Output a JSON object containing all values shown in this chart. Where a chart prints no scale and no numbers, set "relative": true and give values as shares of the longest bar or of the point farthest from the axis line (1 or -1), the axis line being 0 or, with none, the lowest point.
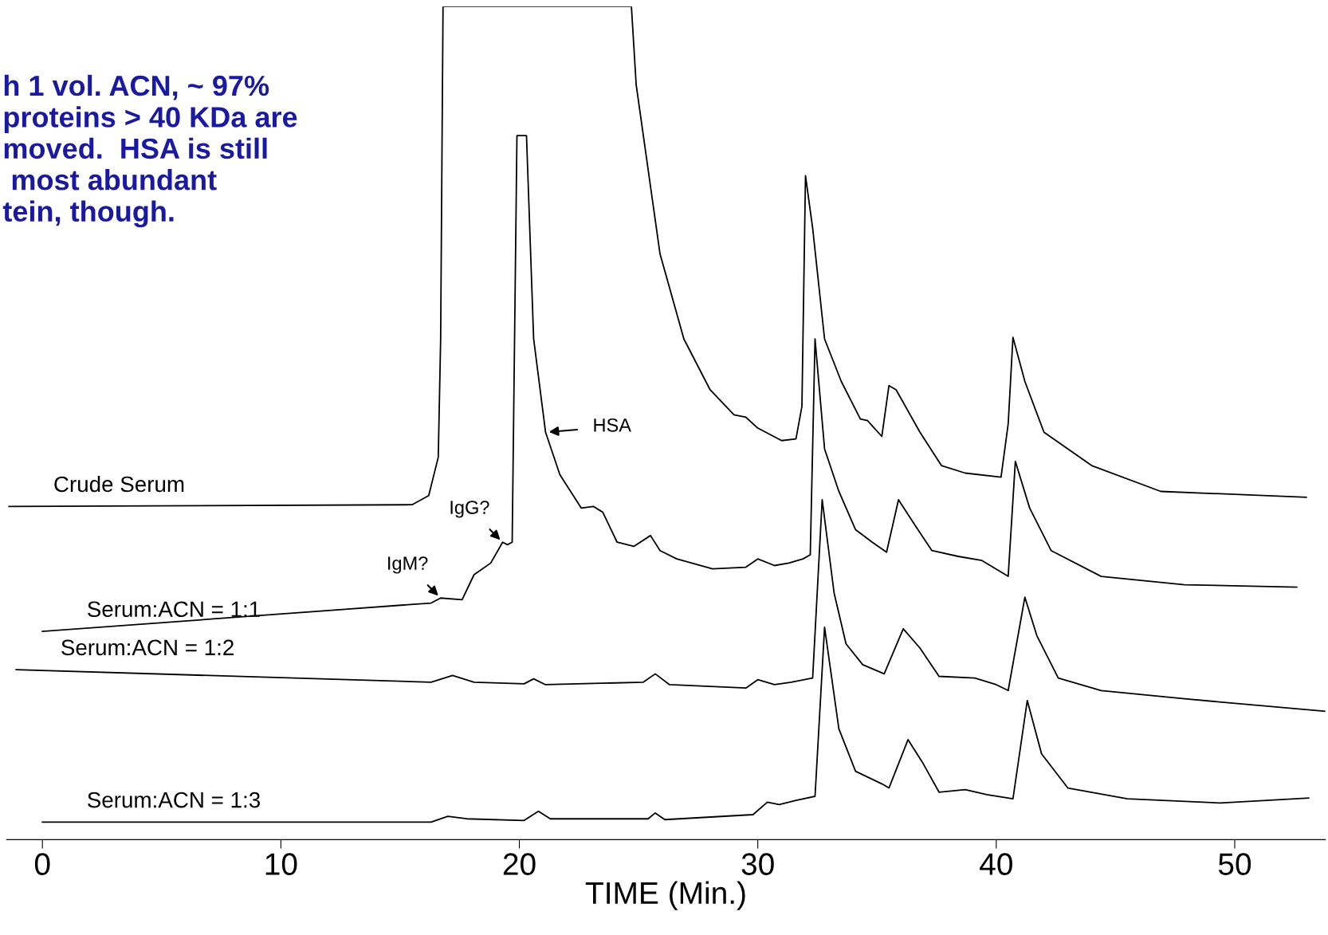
{
  "chart_data": {
    "type": "line",
    "relative": true,
    "xlabel": "TIME (Min.)",
    "xlim": [
      -1.5,
      53.8
    ],
    "xticks": [
      0,
      10,
      20,
      30,
      40,
      50
    ],
    "grid": false,
    "legend": false,
    "marker": "none",
    "line_style": "solid",
    "annotations": [
      "h 1 vol. ACN, ~ 97%\nproteins > 40 KDa are\nmoved.  HSA is still\n most abundant\ntein, though.",
      {
        "text": "HSA",
        "x": 21.1,
        "y": 0.489
      },
      {
        "text": "IgG?",
        "x": 19.3,
        "y": 0.357
      },
      {
        "text": "IgM?",
        "x": 16.7,
        "y": 0.29
      }
    ],
    "series": [
      {
        "name": "Crude Serum",
        "color": "#000000",
        "x": [
          -1.4,
          15.5,
          16.2,
          16.6,
          16.7,
          16.8,
          24.7,
          24.9,
          25.9,
          26.9,
          28.0,
          29.0,
          29.5,
          30.0,
          31.0,
          31.6,
          31.85,
          32.0,
          32.3,
          32.8,
          33.5,
          34.3,
          34.6,
          35.2,
          35.5,
          35.8,
          36.8,
          37.7,
          38.7,
          40.2,
          40.5,
          40.7,
          41.2,
          42.0,
          44.0,
          46.9,
          53.0
        ],
        "values": [
          0.4,
          0.402,
          0.413,
          0.459,
          0.6,
          1.0,
          1.0,
          0.906,
          0.703,
          0.601,
          0.54,
          0.51,
          0.507,
          0.494,
          0.479,
          0.481,
          0.52,
          0.797,
          0.734,
          0.601,
          0.55,
          0.505,
          0.503,
          0.484,
          0.545,
          0.54,
          0.489,
          0.449,
          0.44,
          0.435,
          0.499,
          0.603,
          0.55,
          0.489,
          0.449,
          0.418,
          0.411
        ]
      },
      {
        "name": "Serum:ACN = 1:1",
        "color": "#000000",
        "x": [
          0,
          16.3,
          16.7,
          17.6,
          18.1,
          18.8,
          19.3,
          19.5,
          19.7,
          19.9,
          20.3,
          20.6,
          21.1,
          21.7,
          22.6,
          23.1,
          23.5,
          24.1,
          24.8,
          25.5,
          25.9,
          26.6,
          28.1,
          29.5,
          30.0,
          30.7,
          31.3,
          31.9,
          32.2,
          32.4,
          32.8,
          33.4,
          34.1,
          34.8,
          35.4,
          35.9,
          36.6,
          37.3,
          38.4,
          39.4,
          40.5,
          40.8,
          41.4,
          42.3,
          44.4,
          47.9,
          52.6
        ],
        "values": [
          0.25,
          0.284,
          0.29,
          0.288,
          0.318,
          0.332,
          0.357,
          0.354,
          0.357,
          0.845,
          0.845,
          0.601,
          0.489,
          0.438,
          0.398,
          0.4,
          0.393,
          0.357,
          0.352,
          0.365,
          0.347,
          0.337,
          0.325,
          0.327,
          0.337,
          0.329,
          0.332,
          0.337,
          0.342,
          0.601,
          0.469,
          0.418,
          0.372,
          0.357,
          0.345,
          0.408,
          0.377,
          0.347,
          0.34,
          0.335,
          0.316,
          0.454,
          0.398,
          0.347,
          0.316,
          0.306,
          0.303
        ]
      },
      {
        "name": "Serum:ACN = 1:2",
        "color": "#000000",
        "x": [
          -1.1,
          16.3,
          17.2,
          18.1,
          20.2,
          20.6,
          21.1,
          25.2,
          25.7,
          26.3,
          29.5,
          30.0,
          30.7,
          31.4,
          32.3,
          32.7,
          33.2,
          33.7,
          34.4,
          35.3,
          36.1,
          36.8,
          37.6,
          39.1,
          40.0,
          40.5,
          41.2,
          41.7,
          42.6,
          44.4,
          47.9,
          53.8
        ],
        "values": [
          0.204,
          0.189,
          0.197,
          0.189,
          0.187,
          0.193,
          0.186,
          0.189,
          0.199,
          0.186,
          0.182,
          0.192,
          0.186,
          0.189,
          0.194,
          0.408,
          0.296,
          0.235,
          0.21,
          0.199,
          0.253,
          0.23,
          0.196,
          0.194,
          0.186,
          0.179,
          0.291,
          0.245,
          0.194,
          0.179,
          0.169,
          0.154
        ]
      },
      {
        "name": "Serum:ACN = 1:3",
        "color": "#000000",
        "x": [
          0,
          16.3,
          17.0,
          17.8,
          20.2,
          20.8,
          21.3,
          25.4,
          25.7,
          26.1,
          29.8,
          30.4,
          30.9,
          31.6,
          32.4,
          32.8,
          33.4,
          34.1,
          35.2,
          35.5,
          36.3,
          36.9,
          37.6,
          38.7,
          39.6,
          40.7,
          41.3,
          41.9,
          43.0,
          45.5,
          49.4,
          53.1
        ],
        "values": [
          0.021,
          0.021,
          0.028,
          0.025,
          0.023,
          0.034,
          0.025,
          0.025,
          0.032,
          0.024,
          0.03,
          0.045,
          0.042,
          0.047,
          0.052,
          0.255,
          0.133,
          0.082,
          0.067,
          0.062,
          0.12,
          0.093,
          0.057,
          0.06,
          0.054,
          0.049,
          0.167,
          0.103,
          0.062,
          0.049,
          0.044,
          0.05
        ]
      }
    ]
  }
}
